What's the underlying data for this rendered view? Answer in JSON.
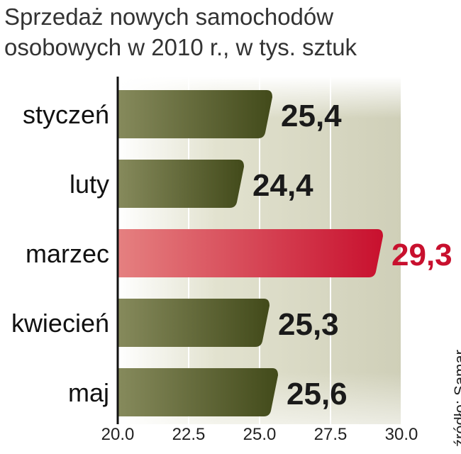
{
  "chart_data": {
    "type": "bar",
    "orientation": "horizontal",
    "title": "Sprzedaż nowych samochodów",
    "subtitle": "osobowych w 2010 r., w tys. sztuk",
    "categories": [
      "styczeń",
      "luty",
      "marzec",
      "kwiecień",
      "maj"
    ],
    "values": [
      25.4,
      24.4,
      29.3,
      25.3,
      25.6
    ],
    "value_labels": [
      "25,4",
      "24,4",
      "29,3",
      "25,3",
      "25,6"
    ],
    "highlight_index": 2,
    "xlim": [
      20.0,
      30.0
    ],
    "x_ticks": [
      20.0,
      22.5,
      25.0,
      27.5,
      30.0
    ],
    "x_tick_labels": [
      "20.0",
      "22.5",
      "25.0",
      "27.5",
      "30.0"
    ],
    "grid": true,
    "source": "źródło: Samar",
    "colors": {
      "bar": "#5a6630",
      "bar_highlight": "#d0203a",
      "value_label": "#1a1a1a",
      "value_label_highlight": "#c8102e",
      "plot_background": "#dcdcc8"
    }
  }
}
